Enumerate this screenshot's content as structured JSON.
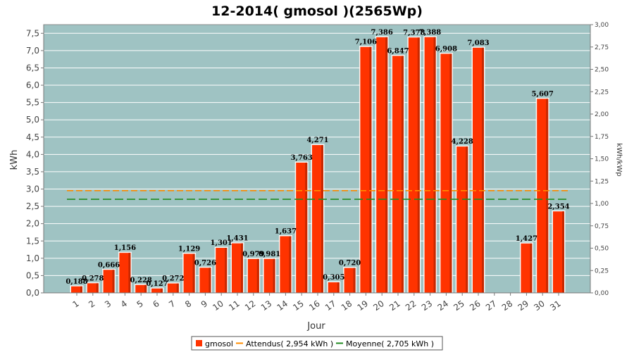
{
  "chart_data": {
    "type": "bar",
    "title": "12-2014( gmosol )(2565Wp)",
    "xlabel": "Jour",
    "ylabel": "kWh",
    "y2label": "kWh/kWp",
    "ylim": [
      0,
      7.75
    ],
    "y2lim": [
      0,
      3.0
    ],
    "yticks": [
      "0,0",
      "0,5",
      "1,0",
      "1,5",
      "2,0",
      "2,5",
      "3,0",
      "3,5",
      "4,0",
      "4,5",
      "5,0",
      "5,5",
      "6,0",
      "6,5",
      "7,0",
      "7,5"
    ],
    "y2ticks": [
      "0,00",
      "0,25",
      "0,50",
      "0,75",
      "1,00",
      "1,25",
      "1,50",
      "1,75",
      "2,00",
      "2,25",
      "2,50",
      "2,75",
      "3,00"
    ],
    "categories": [
      "1",
      "2",
      "3",
      "4",
      "5",
      "6",
      "7",
      "8",
      "9",
      "10",
      "11",
      "12",
      "13",
      "14",
      "15",
      "16",
      "17",
      "18",
      "19",
      "20",
      "21",
      "22",
      "23",
      "24",
      "25",
      "26",
      "27",
      "28",
      "29",
      "30",
      "31"
    ],
    "series": [
      {
        "name": "gmosol",
        "color": "#ff3300",
        "values": [
          0.188,
          0.278,
          0.666,
          1.156,
          0.228,
          0.127,
          0.272,
          1.129,
          0.726,
          1.301,
          1.431,
          0.979,
          0.981,
          1.637,
          3.763,
          4.271,
          0.305,
          0.72,
          7.106,
          7.386,
          6.847,
          7.378,
          7.388,
          6.908,
          4.228,
          7.083,
          null,
          null,
          1.427,
          5.607,
          2.354
        ],
        "labels": [
          "0,188",
          "0,278",
          "0,666",
          "1,156",
          "0,228",
          "0,127",
          "0,272",
          "1,129",
          "0,726",
          "1,301",
          "1,431",
          "0,979",
          "0,981",
          "1,637",
          "3,763",
          "4,271",
          "0,305",
          "0,720",
          "7,106",
          "7,386",
          "6,847",
          "7,378",
          "7,388",
          "6,908",
          "4,228",
          "7,083",
          "",
          "",
          "1,427",
          "5,607",
          "2,354"
        ]
      }
    ],
    "reference_lines": [
      {
        "name": "Attendus( 2,954 kWh )",
        "value": 2.954,
        "color": "#ff8c00"
      },
      {
        "name": "Moyenne( 2,705 kWh )",
        "value": 2.705,
        "color": "#228b22"
      }
    ],
    "legend": {
      "position": "bottom",
      "items": [
        "gmosol",
        "Attendus( 2,954 kWh )",
        "Moyenne( 2,705 kWh )"
      ]
    },
    "plot_background": "#9fc3c3",
    "grid": true
  }
}
